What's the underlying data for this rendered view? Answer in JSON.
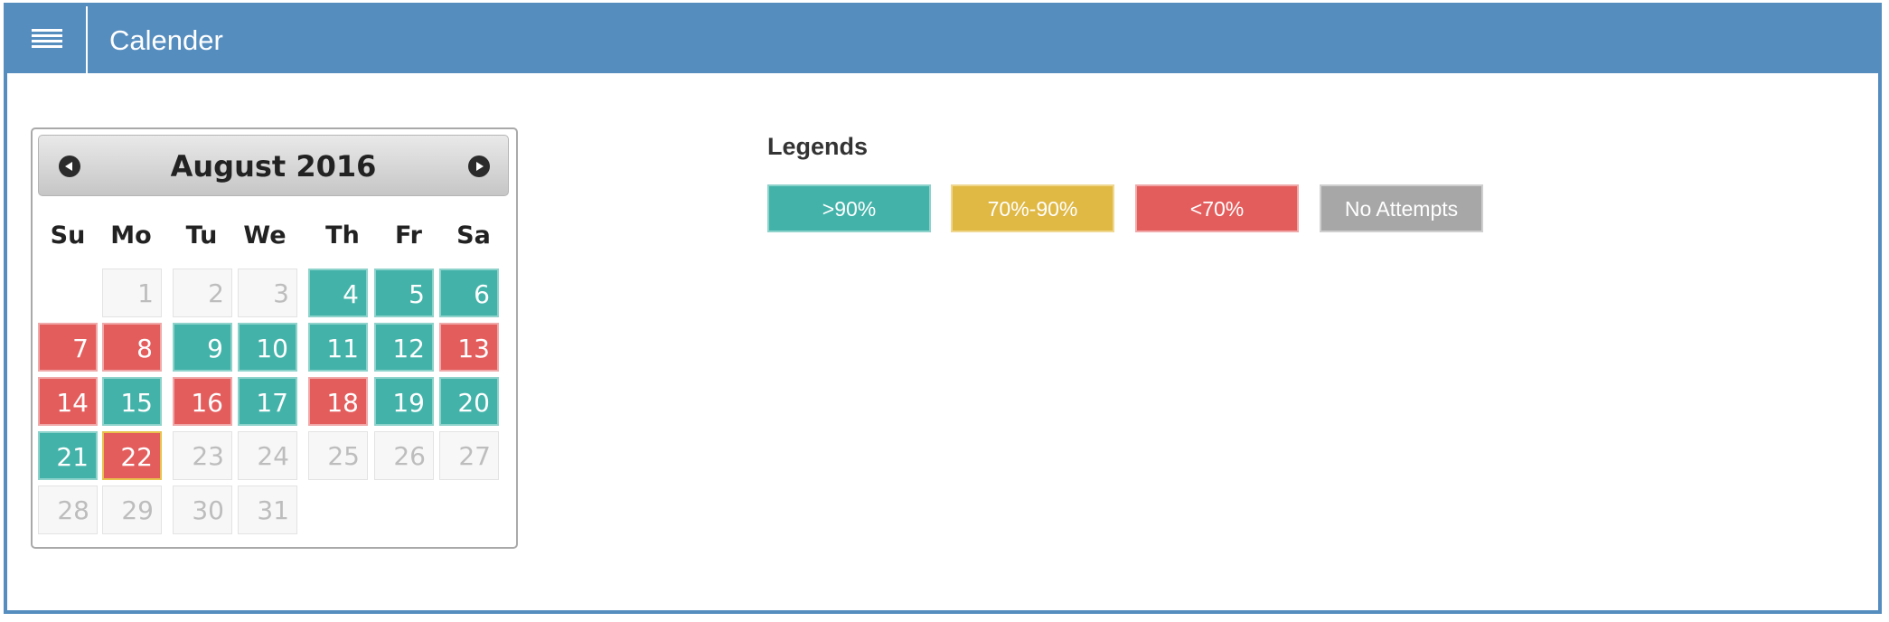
{
  "header": {
    "title": "Calender",
    "menu_icon": "hamburger-icon"
  },
  "calendar": {
    "month_label": "August 2016",
    "prev_icon": "circle-arrow-left-icon",
    "next_icon": "circle-arrow-right-icon",
    "weekdays": [
      "Su",
      "Mo",
      "Tu",
      "We",
      "Th",
      "Fr",
      "Sa"
    ],
    "first_weekday_index": 1,
    "selected_day": 22,
    "days": [
      {
        "day": "1",
        "status": "none"
      },
      {
        "day": "2",
        "status": "none"
      },
      {
        "day": "3",
        "status": "none"
      },
      {
        "day": "4",
        "status": "green"
      },
      {
        "day": "5",
        "status": "green"
      },
      {
        "day": "6",
        "status": "green"
      },
      {
        "day": "7",
        "status": "red"
      },
      {
        "day": "8",
        "status": "red"
      },
      {
        "day": "9",
        "status": "green"
      },
      {
        "day": "10",
        "status": "green"
      },
      {
        "day": "11",
        "status": "green"
      },
      {
        "day": "12",
        "status": "green"
      },
      {
        "day": "13",
        "status": "red"
      },
      {
        "day": "14",
        "status": "red"
      },
      {
        "day": "15",
        "status": "green"
      },
      {
        "day": "16",
        "status": "red"
      },
      {
        "day": "17",
        "status": "green"
      },
      {
        "day": "18",
        "status": "red"
      },
      {
        "day": "19",
        "status": "green"
      },
      {
        "day": "20",
        "status": "green"
      },
      {
        "day": "21",
        "status": "green"
      },
      {
        "day": "22",
        "status": "red"
      },
      {
        "day": "23",
        "status": "none"
      },
      {
        "day": "24",
        "status": "none"
      },
      {
        "day": "25",
        "status": "none"
      },
      {
        "day": "26",
        "status": "none"
      },
      {
        "day": "27",
        "status": "none"
      },
      {
        "day": "28",
        "status": "none"
      },
      {
        "day": "29",
        "status": "none"
      },
      {
        "day": "30",
        "status": "none"
      },
      {
        "day": "31",
        "status": "none"
      }
    ]
  },
  "legends": {
    "title": "Legends",
    "items": [
      {
        "label": ">90%",
        "color": "#43b3aa"
      },
      {
        "label": "70%-90%",
        "color": "#e0b844"
      },
      {
        "label": "<70%",
        "color": "#e45d5d"
      },
      {
        "label": "No Attempts",
        "color": "#a7a7a7"
      }
    ]
  },
  "colors": {
    "header": "#558dbf",
    "green": "#43b3aa",
    "red": "#e45d5d",
    "yellow": "#e0b844",
    "gray": "#a7a7a7"
  }
}
